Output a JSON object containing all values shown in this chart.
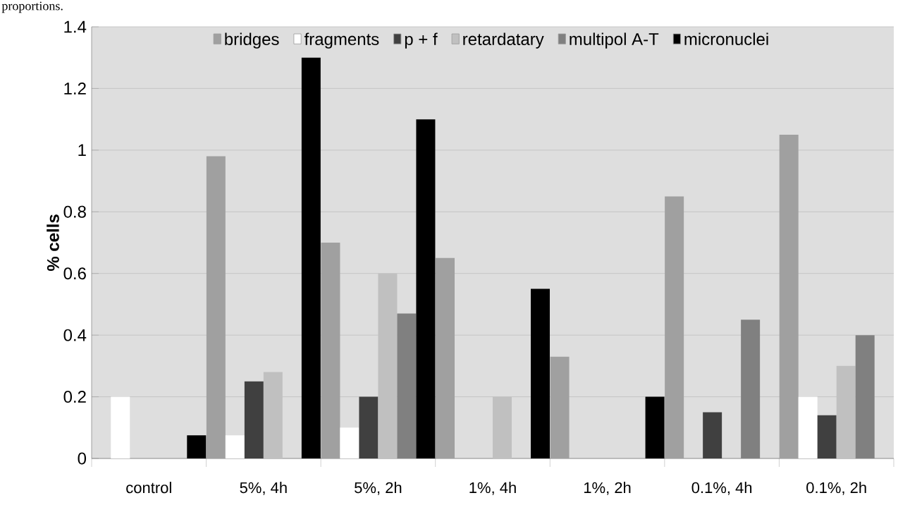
{
  "chart_data": {
    "type": "bar",
    "ylabel": "% cells",
    "annotations": [
      "proportions."
    ],
    "categories": [
      "control",
      "5%, 4h",
      "5%, 2h",
      "1%, 4h",
      "1%, 2h",
      "0.1%, 4h",
      "0.1%, 2h"
    ],
    "series": [
      {
        "name": "bridges",
        "color": "#a0a0a0",
        "values": [
          0,
          0.98,
          0.7,
          0.65,
          0.33,
          0.85,
          1.05
        ]
      },
      {
        "name": "fragments",
        "color": "#ffffff",
        "values": [
          0.2,
          0.075,
          0.1,
          0,
          0,
          0,
          0.2
        ]
      },
      {
        "name": "p + f",
        "color": "#404040",
        "values": [
          0,
          0.25,
          0.2,
          0,
          0,
          0.15,
          0.14
        ]
      },
      {
        "name": "retardatary",
        "color": "#c0c0c0",
        "values": [
          0,
          0.28,
          0.6,
          0.2,
          0,
          0,
          0.3
        ]
      },
      {
        "name": "multipol A-T",
        "color": "#808080",
        "values": [
          0,
          0,
          0.47,
          0,
          0,
          0.45,
          0.4
        ]
      },
      {
        "name": "micronuclei",
        "color": "#000000",
        "values": [
          0.075,
          1.3,
          1.1,
          0.55,
          0.2,
          0,
          0
        ]
      }
    ],
    "ylim": [
      0,
      1.4
    ],
    "yticks": [
      0,
      0.2,
      0.4,
      0.6,
      0.8,
      1,
      1.2,
      1.4
    ],
    "grid": "y",
    "legend": "top"
  }
}
